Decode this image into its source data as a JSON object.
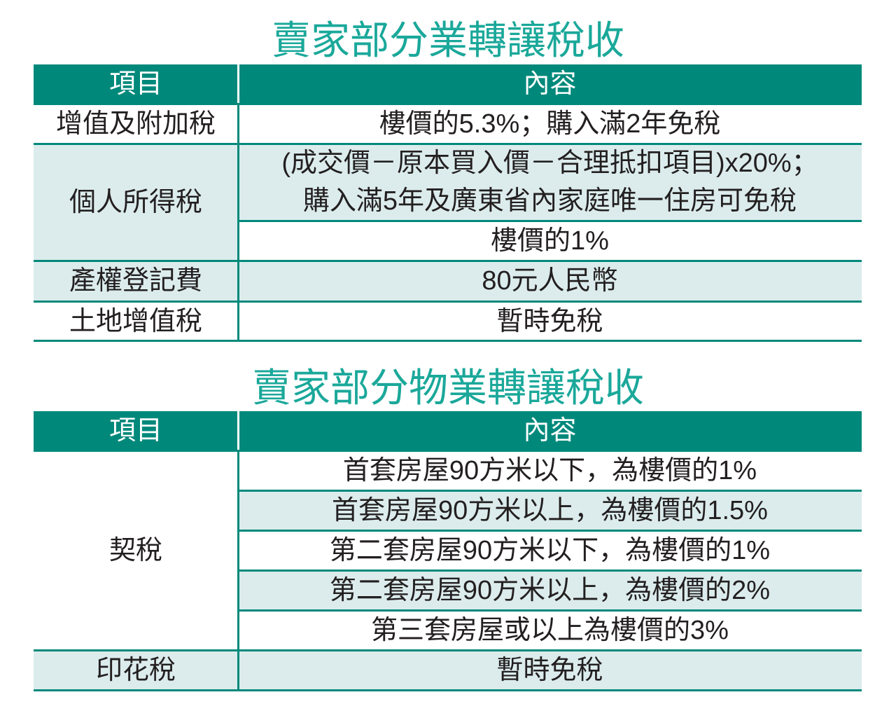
{
  "table1": {
    "title": "賣家部分業轉讓稅收",
    "header": {
      "item": "項目",
      "content": "內容"
    },
    "rows": [
      {
        "item": "增值及附加稅",
        "content": [
          "樓價的5.3%；購入滿2年免稅"
        ]
      },
      {
        "item": "個人所得稅",
        "content": [
          "(成交價－原本買入價－合理抵扣項目)x20%；",
          "購入滿5年及廣東省內家庭唯一住房可免稅",
          "樓價的1%"
        ]
      },
      {
        "item": "產權登記費",
        "content": [
          "80元人民幣"
        ]
      },
      {
        "item": "土地增值稅",
        "content": [
          "暫時免稅"
        ]
      }
    ]
  },
  "table2": {
    "title": "賣家部分物業轉讓稅收",
    "header": {
      "item": "項目",
      "content": "內容"
    },
    "rows": [
      {
        "item": "契稅",
        "content": [
          "首套房屋90方米以下，為樓價的1%",
          "首套房屋90方米以上，為樓價的1.5%",
          "第二套房屋90方米以下，為樓價的1%",
          "第二套房屋90方米以上，為樓價的2%",
          "第三套房屋或以上為樓價的3%"
        ]
      },
      {
        "item": "印花稅",
        "content": [
          "暫時免稅"
        ]
      }
    ]
  },
  "colors": {
    "header": "#00897b",
    "title": "#1aa89a",
    "shade": "#dcecec"
  }
}
